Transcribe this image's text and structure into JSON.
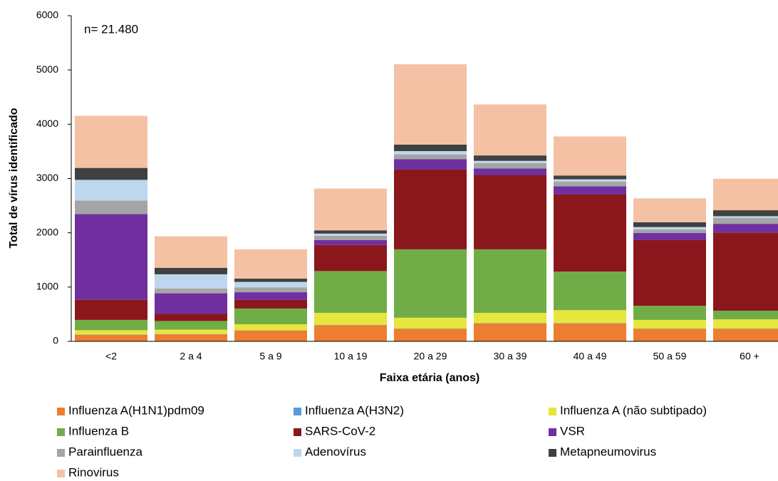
{
  "chart_data": {
    "type": "stacked_bar",
    "annotation": "n= 21.480",
    "x_label": "Faixa etária (anos)",
    "y_label": "Total de vírus identificado",
    "categories": [
      "<2",
      "2 a 4",
      "5 a 9",
      "10 a 19",
      "20 a 29",
      "30 a 39",
      "40 a 49",
      "50 a 59",
      "60 +"
    ],
    "ylim": [
      0,
      6000
    ],
    "yticks": [
      0,
      1000,
      2000,
      3000,
      4000,
      5000,
      6000
    ],
    "grid": false,
    "series": [
      {
        "name": "Influenza A(H1N1)pdm09",
        "color": "#ed7d31",
        "values": [
          120,
          130,
          200,
          300,
          230,
          330,
          330,
          230,
          230
        ]
      },
      {
        "name": "Influenza A(H3N2)",
        "color": "#5b9bd5",
        "values": [
          5,
          5,
          5,
          5,
          5,
          5,
          5,
          5,
          5
        ]
      },
      {
        "name": "Influenza A (não subtipado)",
        "color": "#e6e63c",
        "values": [
          80,
          80,
          110,
          220,
          200,
          190,
          240,
          160,
          170
        ]
      },
      {
        "name": "Influenza B",
        "color": "#70ad47",
        "values": [
          190,
          160,
          290,
          770,
          1260,
          1170,
          710,
          260,
          160
        ]
      },
      {
        "name": "SARS-CoV-2",
        "color": "#8b161c",
        "values": [
          370,
          130,
          160,
          480,
          1470,
          1370,
          1420,
          1210,
          1440
        ]
      },
      {
        "name": "VSR",
        "color": "#7030a0",
        "values": [
          1580,
          380,
          140,
          90,
          190,
          120,
          150,
          130,
          160
        ]
      },
      {
        "name": "Parainfluenza",
        "color": "#a5a5a5",
        "values": [
          250,
          90,
          90,
          80,
          90,
          100,
          90,
          70,
          110
        ]
      },
      {
        "name": "Adenovírus",
        "color": "#bdd7ee",
        "values": [
          380,
          260,
          100,
          40,
          60,
          40,
          40,
          40,
          30
        ]
      },
      {
        "name": "Metapneumovirus",
        "color": "#404040",
        "values": [
          220,
          120,
          60,
          60,
          120,
          100,
          70,
          90,
          110
        ]
      },
      {
        "name": "Rinovirus",
        "color": "#f4c1a4",
        "values": [
          960,
          580,
          540,
          770,
          1480,
          940,
          720,
          440,
          580
        ]
      }
    ]
  }
}
